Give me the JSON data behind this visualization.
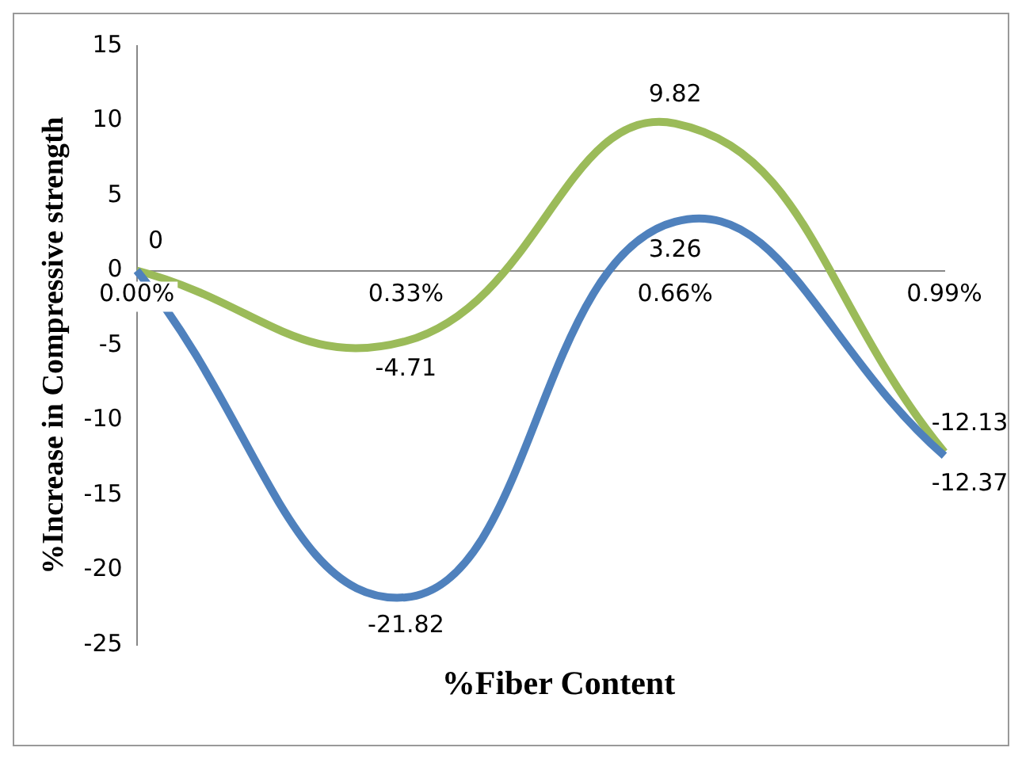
{
  "chart_data": {
    "type": "line",
    "xlabel": "%Fiber Content",
    "ylabel": "%Increase in Compressive strength",
    "categories": [
      "0.00%",
      "0.33%",
      "0.66%",
      "0.99%"
    ],
    "series": [
      {
        "color": "#4f81bd",
        "values": [
          0,
          -21.82,
          3.26,
          -12.37
        ],
        "value_labels": [
          "0",
          "-21.82",
          "3.26",
          "-12.37"
        ]
      },
      {
        "color": "#9bbb59",
        "values": [
          0,
          -4.71,
          9.82,
          -12.13
        ],
        "value_labels": [
          null,
          "-4.71",
          "9.82",
          "-12.13"
        ]
      }
    ],
    "ylim": [
      -25,
      15
    ],
    "yticks": [
      -25,
      -20,
      -15,
      -10,
      -5,
      0,
      5,
      10,
      15
    ],
    "grid": false,
    "legend": false,
    "marker": "none",
    "line_style": "solid"
  }
}
